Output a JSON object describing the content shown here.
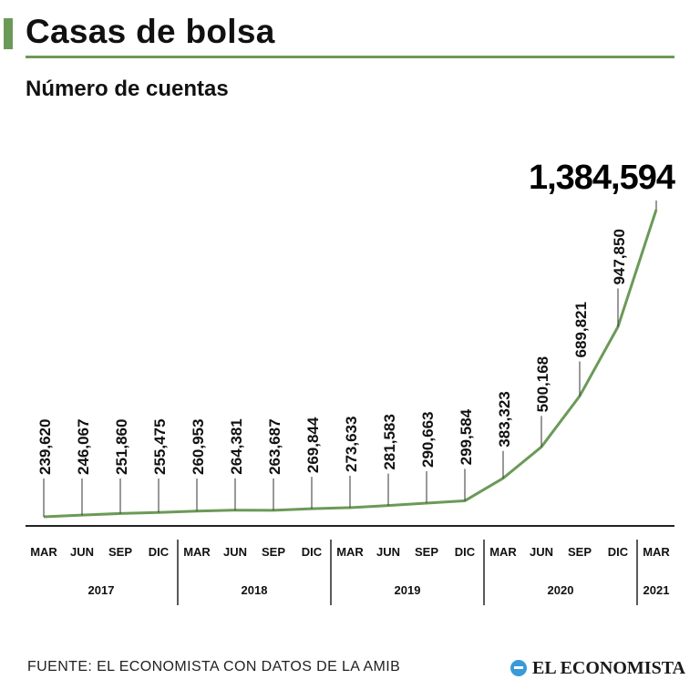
{
  "header": {
    "title": "Casas de bolsa",
    "subtitle": "Número de cuentas"
  },
  "footer": {
    "source": "FUENTE: EL ECONOMISTA CON DATOS DE LA AMIB",
    "logo_text": "EL ECONOMISTA"
  },
  "colors": {
    "accent": "#6b9a58",
    "line": "#6b9a58",
    "text": "#111111"
  },
  "chart_data": {
    "type": "line",
    "title": "Casas de bolsa",
    "subtitle": "Número de cuentas",
    "categories": [
      "MAR",
      "JUN",
      "SEP",
      "DIC",
      "MAR",
      "JUN",
      "SEP",
      "DIC",
      "MAR",
      "JUN",
      "SEP",
      "DIC",
      "MAR",
      "JUN",
      "SEP",
      "DIC",
      "MAR"
    ],
    "years": [
      {
        "label": "2017",
        "count": 4
      },
      {
        "label": "2018",
        "count": 4
      },
      {
        "label": "2019",
        "count": 4
      },
      {
        "label": "2020",
        "count": 4
      },
      {
        "label": "2021",
        "count": 1
      }
    ],
    "values": [
      239620,
      246067,
      251860,
      255475,
      260953,
      264381,
      263687,
      269844,
      273633,
      281583,
      290663,
      299584,
      383323,
      500168,
      689821,
      947850,
      1384594
    ],
    "value_labels": [
      "239,620",
      "246,067",
      "251,860",
      "255,475",
      "260,953",
      "264,381",
      "263,687",
      "269,844",
      "273,633",
      "281,583",
      "290,663",
      "299,584",
      "383,323",
      "500,168",
      "689,821",
      "947,850",
      "1,384,594"
    ],
    "highlight_last": true,
    "grid": false,
    "legend": "none"
  }
}
